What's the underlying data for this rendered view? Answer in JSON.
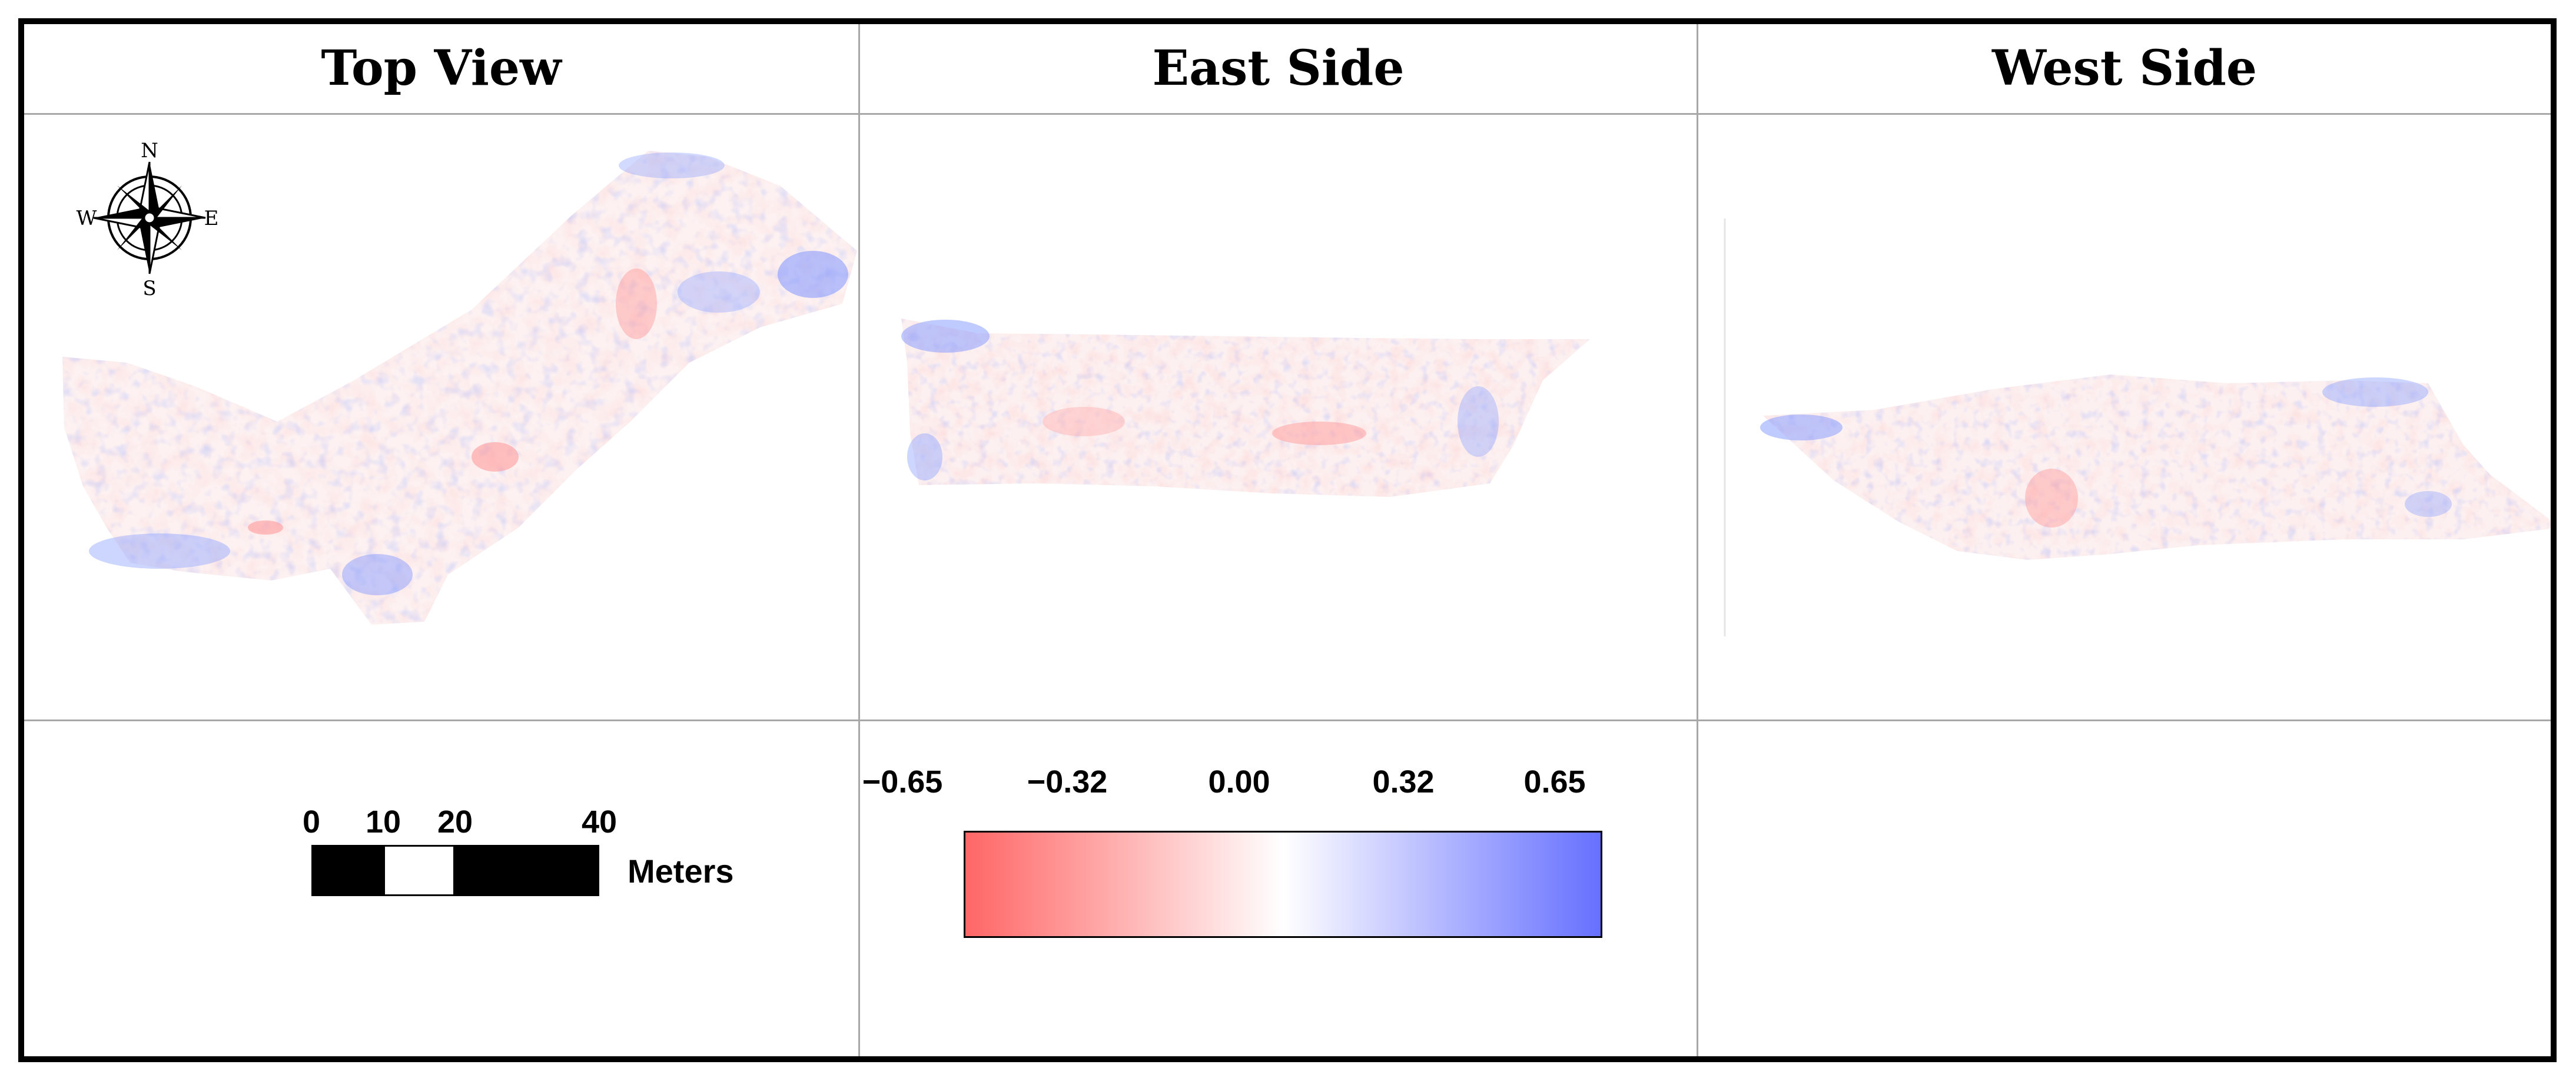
{
  "headers": {
    "top_view": "Top View",
    "east_side": "East Side",
    "west_side": "West Side"
  },
  "compass": {
    "n": "N",
    "e": "E",
    "s": "S",
    "w": "W"
  },
  "scale_bar": {
    "ticks": [
      "0",
      "10",
      "20",
      "40"
    ],
    "unit": "Meters"
  },
  "colorbar": {
    "ticks": [
      "−0.65",
      "−0.32",
      "0.00",
      "0.32",
      "0.65"
    ],
    "min": -0.65,
    "max": 0.65,
    "colors": {
      "negative": "#ff6666",
      "neutral": "#ffffff",
      "positive": "#6670ff"
    }
  },
  "colors": {
    "grid": "#a8a8a8",
    "border": "#000000"
  }
}
